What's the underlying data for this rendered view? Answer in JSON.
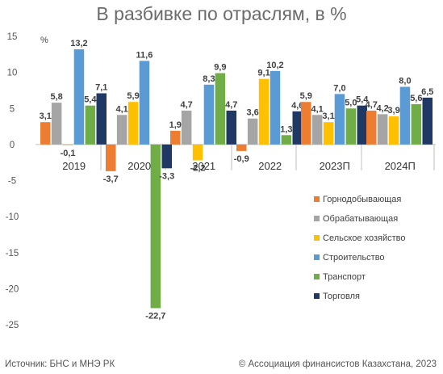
{
  "chart_data": {
    "type": "bar",
    "title": "В разбивке по отраслям, в %",
    "y_unit_label": "%",
    "ylim": [
      -25,
      15
    ],
    "yticks": [
      15,
      10,
      5,
      0,
      -5,
      -10,
      -15,
      -20,
      -25
    ],
    "grid": "vertical separators between years",
    "legend_position": "bottom-right",
    "categories": [
      "2019",
      "2020",
      "2021",
      "2022",
      "2023П",
      "2024П"
    ],
    "series": [
      {
        "name": "Горнодобывающая",
        "color": "#ed7d31",
        "values": [
          3.1,
          -3.7,
          1.9,
          -0.9,
          5.9,
          4.7
        ],
        "labels": [
          "3,1",
          "-3,7",
          "1,9",
          "-0,9",
          "5,9",
          "4,7"
        ]
      },
      {
        "name": "Обрабатывающая",
        "color": "#a5a5a5",
        "values": [
          5.8,
          4.1,
          4.7,
          3.6,
          4.1,
          4.2
        ],
        "labels": [
          "5,8",
          "4,1",
          "4,7",
          "3,6",
          "4,1",
          "4,2"
        ]
      },
      {
        "name": "Сельское хозяйство",
        "color": "#ffc000",
        "values": [
          -0.1,
          5.9,
          -2.2,
          9.1,
          3.1,
          3.9
        ],
        "labels": [
          "-0,1",
          "5,9",
          "-2,2",
          "9,1",
          "3,1",
          "3,9"
        ]
      },
      {
        "name": "Строительство",
        "color": "#5b9bd5",
        "values": [
          13.2,
          11.6,
          8.3,
          10.2,
          7.0,
          8.0
        ],
        "labels": [
          "13,2",
          "11,6",
          "8,3",
          "10,2",
          "7,0",
          "8,0"
        ]
      },
      {
        "name": "Транспорт",
        "color": "#70ad47",
        "values": [
          5.4,
          -22.7,
          9.9,
          1.3,
          5.0,
          5.6
        ],
        "labels": [
          "5,4",
          "-22,7",
          "9,9",
          "1,3",
          "5,0",
          "5,6"
        ]
      },
      {
        "name": "Торговля",
        "color": "#203864",
        "values": [
          7.1,
          -3.3,
          4.7,
          4.6,
          5.4,
          6.5
        ],
        "labels": [
          "7,1",
          "-3,3",
          "4,7",
          "4,6",
          "5,4",
          "6,5"
        ]
      }
    ]
  },
  "footer": {
    "source": "Источник: БНС и МНЭ РК",
    "copyright": "© Ассоциация финансистов Казахстана, 2023"
  }
}
